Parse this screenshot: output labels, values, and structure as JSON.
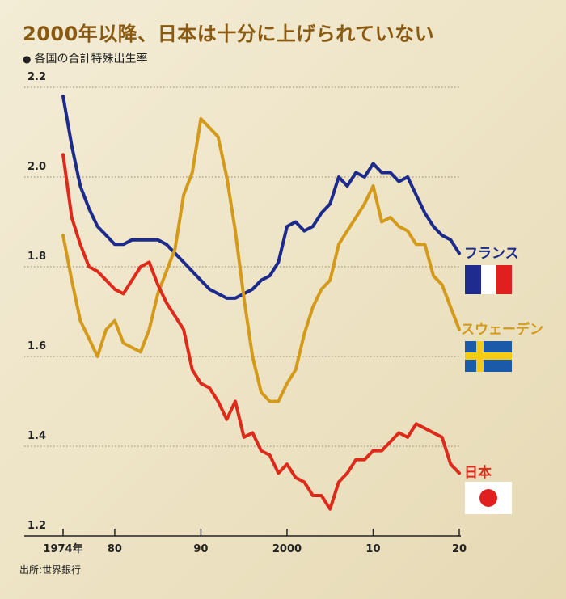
{
  "title": "2000年以降、日本は十分に上げられていない",
  "subtitle": "各国の合計特殊出生率",
  "source": "出所:世界銀行",
  "colors": {
    "france": "#1c2a8c",
    "sweden": "#d49a1c",
    "japan": "#dd2a1b"
  },
  "chart_data": {
    "type": "line",
    "title": "2000年以降、日本は十分に上げられていない",
    "subtitle": "各国の合計特殊出生率",
    "xlim": [
      1974,
      2020
    ],
    "ylim": [
      1.2,
      2.2
    ],
    "y_ticks": [
      "1.2",
      "1.4",
      "1.6",
      "1.8",
      "2.0",
      "2.2"
    ],
    "x_ticks": [
      {
        "value": 1974,
        "label": "1974年"
      },
      {
        "value": 1980,
        "label": "80"
      },
      {
        "value": 1990,
        "label": "90"
      },
      {
        "value": 2000,
        "label": "2000"
      },
      {
        "value": 2010,
        "label": "10"
      },
      {
        "value": 2020,
        "label": "20"
      }
    ],
    "grid": "horizontal dotted",
    "x": [
      1974,
      1975,
      1976,
      1977,
      1978,
      1979,
      1980,
      1981,
      1982,
      1983,
      1984,
      1985,
      1986,
      1987,
      1988,
      1989,
      1990,
      1991,
      1992,
      1993,
      1994,
      1995,
      1996,
      1997,
      1998,
      1999,
      2000,
      2001,
      2002,
      2003,
      2004,
      2005,
      2006,
      2007,
      2008,
      2009,
      2010,
      2011,
      2012,
      2013,
      2014,
      2015,
      2016,
      2017,
      2018,
      2019,
      2020
    ],
    "series": [
      {
        "name": "フランス",
        "color": "#1c2a8c",
        "values": [
          2.18,
          2.07,
          1.98,
          1.93,
          1.89,
          1.87,
          1.85,
          1.85,
          1.86,
          1.86,
          1.86,
          1.86,
          1.85,
          1.83,
          1.81,
          1.79,
          1.77,
          1.75,
          1.74,
          1.73,
          1.73,
          1.74,
          1.75,
          1.77,
          1.78,
          1.81,
          1.89,
          1.9,
          1.88,
          1.89,
          1.92,
          1.94,
          2.0,
          1.98,
          2.01,
          2.0,
          2.03,
          2.01,
          2.01,
          1.99,
          2.0,
          1.96,
          1.92,
          1.89,
          1.87,
          1.86,
          1.83
        ]
      },
      {
        "name": "スウェーデン",
        "color": "#d49a1c",
        "values": [
          1.87,
          1.77,
          1.68,
          1.64,
          1.6,
          1.66,
          1.68,
          1.63,
          1.62,
          1.61,
          1.66,
          1.74,
          1.79,
          1.84,
          1.96,
          2.01,
          2.13,
          2.11,
          2.09,
          2.0,
          1.88,
          1.73,
          1.6,
          1.52,
          1.5,
          1.5,
          1.54,
          1.57,
          1.65,
          1.71,
          1.75,
          1.77,
          1.85,
          1.88,
          1.91,
          1.94,
          1.98,
          1.9,
          1.91,
          1.89,
          1.88,
          1.85,
          1.85,
          1.78,
          1.76,
          1.71,
          1.66
        ]
      },
      {
        "name": "日本",
        "color": "#dd2a1b",
        "values": [
          2.05,
          1.91,
          1.85,
          1.8,
          1.79,
          1.77,
          1.75,
          1.74,
          1.77,
          1.8,
          1.81,
          1.76,
          1.72,
          1.69,
          1.66,
          1.57,
          1.54,
          1.53,
          1.5,
          1.46,
          1.5,
          1.42,
          1.43,
          1.39,
          1.38,
          1.34,
          1.36,
          1.33,
          1.32,
          1.29,
          1.29,
          1.26,
          1.32,
          1.34,
          1.37,
          1.37,
          1.39,
          1.39,
          1.41,
          1.43,
          1.42,
          1.45,
          1.44,
          1.43,
          1.42,
          1.36,
          1.34
        ]
      }
    ]
  }
}
